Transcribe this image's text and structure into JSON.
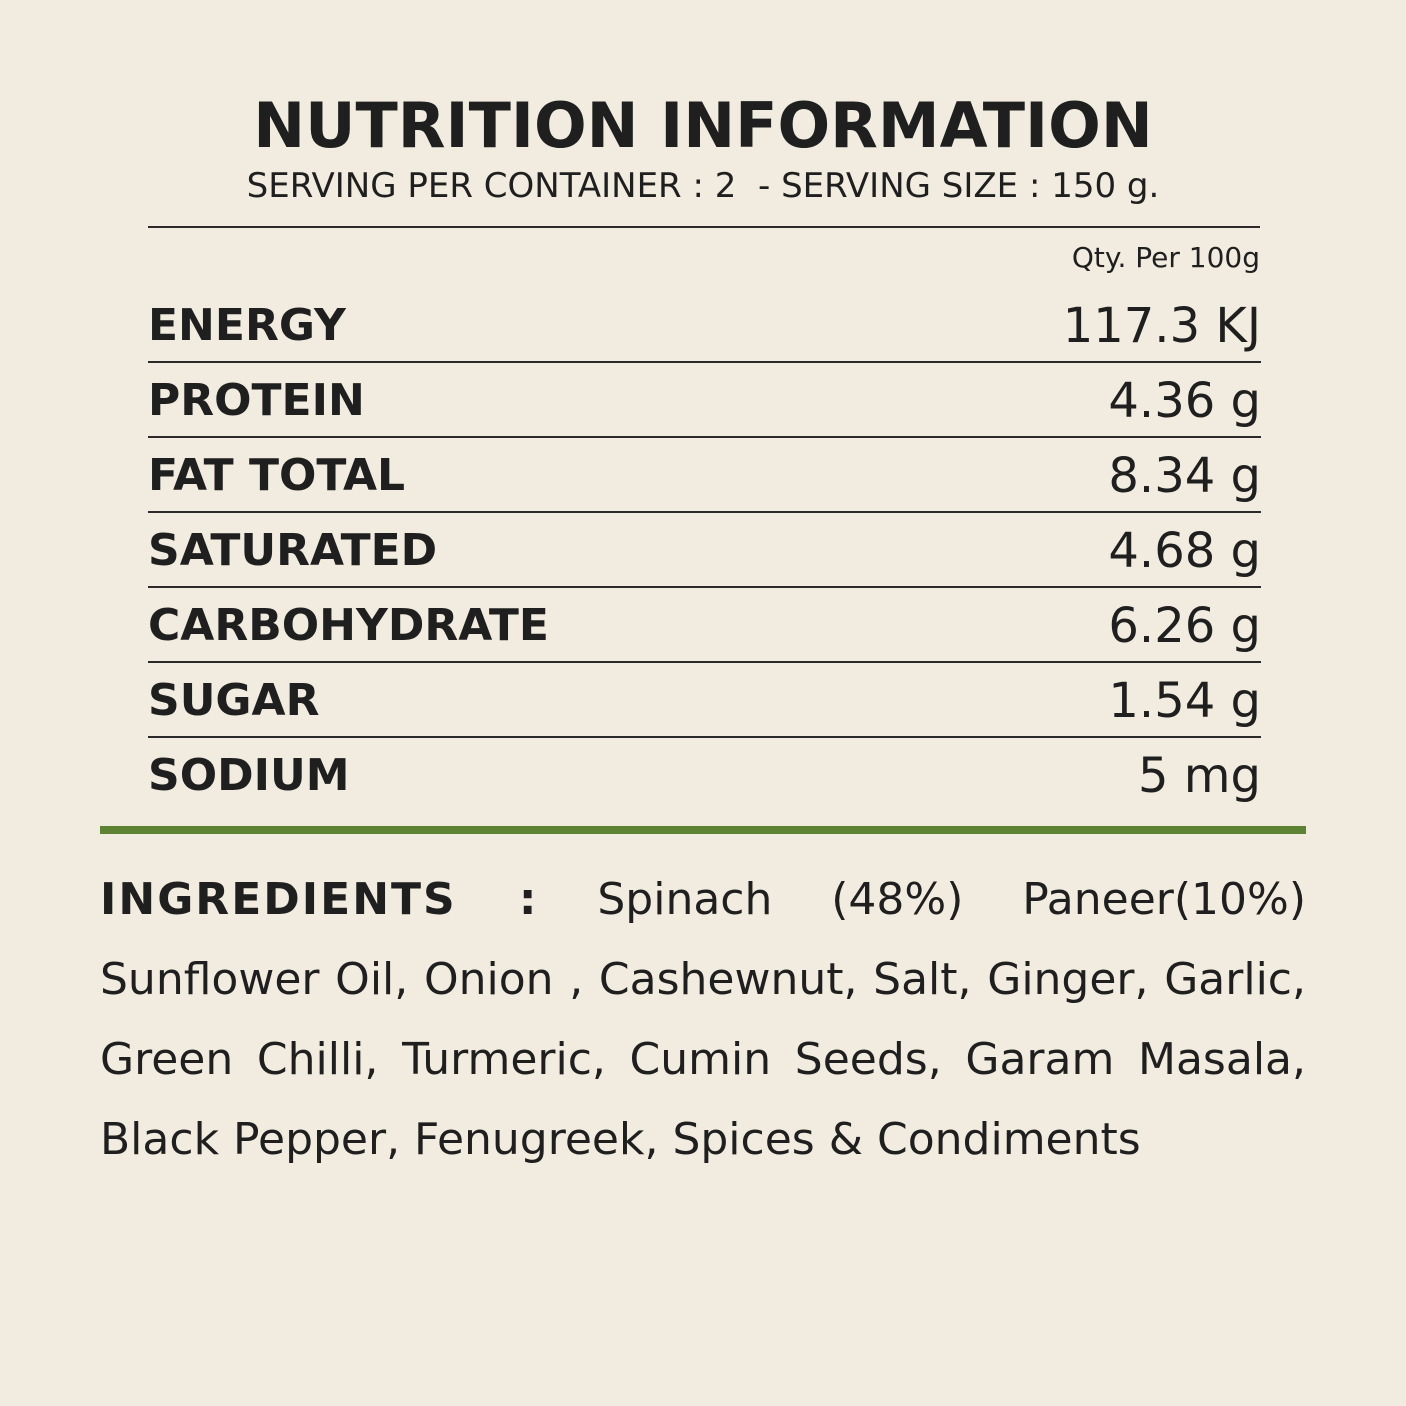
{
  "header": {
    "title": "NUTRITION INFORMATION",
    "subtitle": "SERVING PER CONTAINER : 2  - SERVING SIZE : 150 g.",
    "qty_header": "Qty. Per 100g"
  },
  "nutrients": [
    {
      "label": "ENERGY",
      "value": "117.3 KJ"
    },
    {
      "label": "PROTEIN",
      "value": "4.36 g"
    },
    {
      "label": "FAT TOTAL",
      "value": "8.34 g"
    },
    {
      "label": "SATURATED",
      "value": "4.68 g"
    },
    {
      "label": "CARBOHYDRATE",
      "value": "6.26 g"
    },
    {
      "label": "SUGAR",
      "value": "1.54 g"
    },
    {
      "label": "SODIUM",
      "value": "5 mg"
    }
  ],
  "ingredients": {
    "label": "INGREDIENTS :",
    "text": "Spinach (48%) Paneer(10%) Sunflower Oil, Onion , Cashewnut, Salt, Ginger, Garlic, Green Chilli, Turmeric, Cumin Seeds, Garam Masala, Black Pepper, Fenugreek, Spices & Condiments"
  },
  "colors": {
    "background": "#f1ecdf",
    "text": "#1f1f1f",
    "accent_rule": "#5e8233"
  }
}
